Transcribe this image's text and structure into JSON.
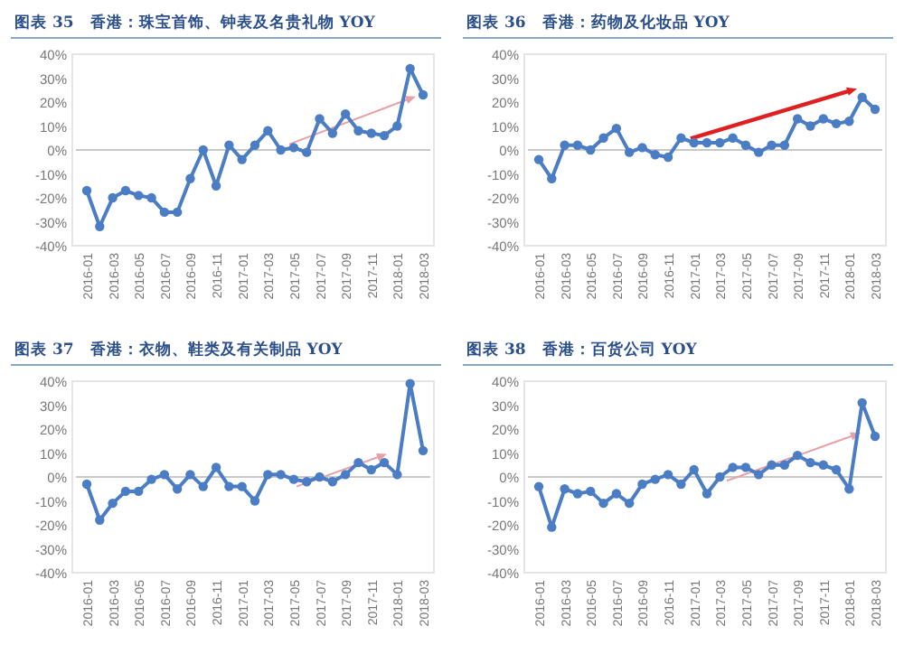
{
  "chart_data": [
    {
      "type": "line",
      "title": "图表 35　香港：珠宝首饰、钟表及名贵礼物 YOY",
      "categories": [
        "2016-01",
        null,
        "2016-03",
        null,
        "2016-05",
        null,
        "2016-07",
        null,
        "2016-09",
        null,
        "2016-11",
        null,
        "2017-01",
        null,
        "2017-03",
        null,
        "2017-05",
        null,
        "2017-07",
        null,
        "2017-09",
        null,
        "2017-11",
        null,
        "2018-01",
        null,
        "2018-03"
      ],
      "series": [
        {
          "color": "#4a7dc4",
          "values": [
            -17,
            -32,
            -20,
            -17,
            -19,
            -20,
            -26,
            -26,
            -12,
            0,
            -15,
            2,
            -4,
            2,
            8,
            0,
            1,
            -1,
            13,
            7,
            15,
            8,
            7,
            6,
            10,
            34,
            23
          ]
        }
      ],
      "ylim": [
        -40,
        40
      ],
      "yticks": [
        {
          "value": -40,
          "label": "-40%"
        },
        {
          "value": -30,
          "label": "-30%"
        },
        {
          "value": -20,
          "label": "-20%"
        },
        {
          "value": -10,
          "label": "-10%"
        },
        {
          "value": 0,
          "label": "0%"
        },
        {
          "value": 10,
          "label": "10%"
        },
        {
          "value": 20,
          "label": "20%"
        },
        {
          "value": 30,
          "label": "30%"
        },
        {
          "value": 40,
          "label": "40%"
        }
      ],
      "marker": "circle"
    },
    {
      "type": "line",
      "title": "图表 36　香港：药物及化妆品 YOY",
      "categories": [
        "2016-01",
        null,
        "2016-03",
        null,
        "2016-05",
        null,
        "2016-07",
        null,
        "2016-09",
        null,
        "2016-11",
        null,
        "2017-01",
        null,
        "2017-03",
        null,
        "2017-05",
        null,
        "2017-07",
        null,
        "2017-09",
        null,
        "2017-11",
        null,
        "2018-01",
        null,
        "2018-03"
      ],
      "series": [
        {
          "color": "#4a7dc4",
          "values": [
            -4,
            -12,
            2,
            2,
            0,
            5,
            9,
            -1,
            1,
            -2,
            -3,
            5,
            3,
            3,
            3,
            5,
            2,
            -1,
            2,
            2,
            13,
            10,
            13,
            11,
            12,
            22,
            17
          ]
        }
      ],
      "ylim": [
        -40,
        40
      ],
      "yticks": [
        {
          "value": -40,
          "label": "-40%"
        },
        {
          "value": -30,
          "label": "-30%"
        },
        {
          "value": -20,
          "label": "-20%"
        },
        {
          "value": -10,
          "label": "-10%"
        },
        {
          "value": 0,
          "label": "0%"
        },
        {
          "value": 10,
          "label": "10%"
        },
        {
          "value": 20,
          "label": "20%"
        },
        {
          "value": 30,
          "label": "30%"
        },
        {
          "value": 40,
          "label": "40%"
        }
      ],
      "marker": "circle"
    },
    {
      "type": "line",
      "title": "图表 37　香港：衣物、鞋类及有关制品 YOY",
      "categories": [
        "2016-01",
        null,
        "2016-03",
        null,
        "2016-05",
        null,
        "2016-07",
        null,
        "2016-09",
        null,
        "2016-11",
        null,
        "2017-01",
        null,
        "2017-03",
        null,
        "2017-05",
        null,
        "2017-07",
        null,
        "2017-09",
        null,
        "2017-11",
        null,
        "2018-01",
        null,
        "2018-03"
      ],
      "series": [
        {
          "color": "#4a7dc4",
          "values": [
            -3,
            -18,
            -11,
            -6,
            -6,
            -1,
            1,
            -5,
            1,
            -4,
            4,
            -4,
            -4,
            -10,
            1,
            1,
            -1,
            -2,
            0,
            -2,
            1,
            6,
            3,
            6,
            1,
            39,
            11
          ]
        }
      ],
      "ylim": [
        -40,
        40
      ],
      "yticks": [
        {
          "value": -40,
          "label": "-40%"
        },
        {
          "value": -30,
          "label": "-30%"
        },
        {
          "value": -20,
          "label": "-20%"
        },
        {
          "value": -10,
          "label": "-10%"
        },
        {
          "value": 0,
          "label": "0%"
        },
        {
          "value": 10,
          "label": "10%"
        },
        {
          "value": 20,
          "label": "20%"
        },
        {
          "value": 30,
          "label": "30%"
        },
        {
          "value": 40,
          "label": "40%"
        }
      ],
      "marker": "circle"
    },
    {
      "type": "line",
      "title": "图表 38　香港：百货公司 YOY",
      "categories": [
        "2016-01",
        null,
        "2016-03",
        null,
        "2016-05",
        null,
        "2016-07",
        null,
        "2016-09",
        null,
        "2016-11",
        null,
        "2017-01",
        null,
        "2017-03",
        null,
        "2017-05",
        null,
        "2017-07",
        null,
        "2017-09",
        null,
        "2017-11",
        null,
        "2018-01",
        null,
        "2018-03"
      ],
      "series": [
        {
          "color": "#4a7dc4",
          "values": [
            -4,
            -21,
            -5,
            -7,
            -6,
            -11,
            -7,
            -11,
            -3,
            -1,
            1,
            -3,
            3,
            -7,
            0,
            4,
            4,
            1,
            5,
            5,
            9,
            6,
            5,
            3,
            -5,
            31,
            17
          ]
        }
      ],
      "ylim": [
        -40,
        40
      ],
      "yticks": [
        {
          "value": -40,
          "label": "-40%"
        },
        {
          "value": -30,
          "label": "-30%"
        },
        {
          "value": -20,
          "label": "-20%"
        },
        {
          "value": -10,
          "label": "-10%"
        },
        {
          "value": 0,
          "label": "0%"
        },
        {
          "value": 10,
          "label": "10%"
        },
        {
          "value": 20,
          "label": "20%"
        },
        {
          "value": 30,
          "label": "30%"
        },
        {
          "value": 40,
          "label": "40%"
        }
      ],
      "marker": "circle"
    }
  ]
}
